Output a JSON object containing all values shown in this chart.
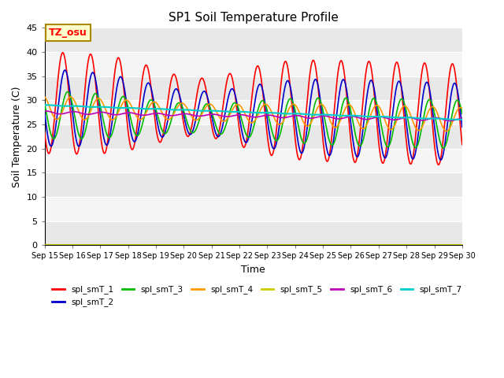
{
  "title": "SP1 Soil Temperature Profile",
  "ylabel": "Soil Temperature (C)",
  "xlabel": "Time",
  "ylim": [
    0,
    45
  ],
  "annotation": "TZ_osu",
  "series_names": [
    "spl_smT_1",
    "spl_smT_2",
    "spl_smT_3",
    "spl_smT_4",
    "spl_smT_5",
    "spl_smT_6",
    "spl_smT_7"
  ],
  "series_colors": [
    "#ff0000",
    "#0000cc",
    "#00bb00",
    "#ff9900",
    "#cccc00",
    "#bb00bb",
    "#00cccc"
  ],
  "n_days": 15,
  "start_day": 15,
  "background_color": "#ffffff",
  "title_fontsize": 11,
  "axis_fontsize": 9,
  "tick_fontsize": 8,
  "yticks": [
    0,
    5,
    10,
    15,
    20,
    25,
    30,
    35,
    40,
    45
  ],
  "band_colors": [
    "#e8e8e8",
    "#f5f5f5"
  ]
}
